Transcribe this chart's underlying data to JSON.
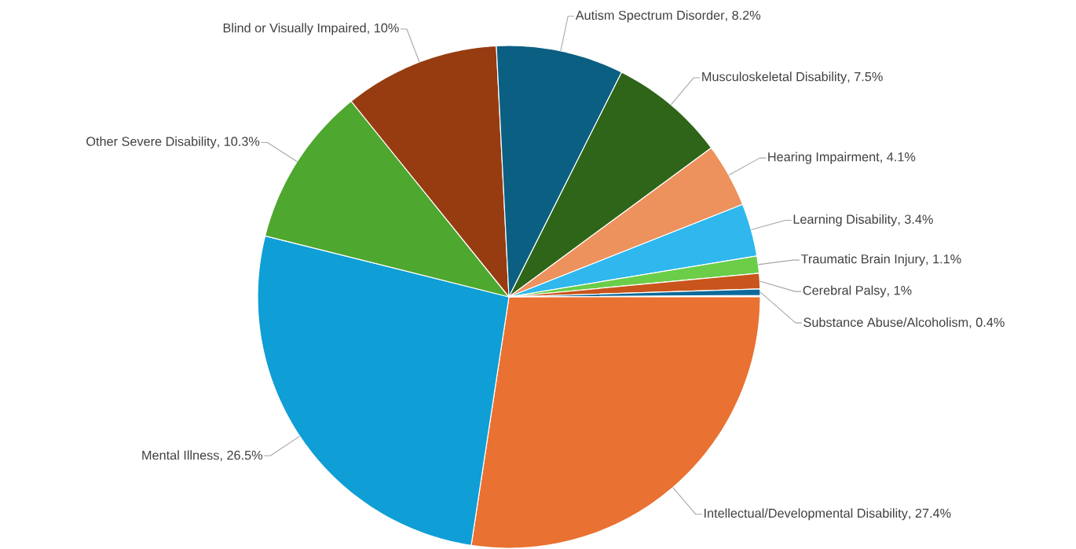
{
  "chart_data": {
    "type": "pie",
    "categories": [
      "Intellectual/Developmental Disability",
      "Mental Illness",
      "Other Severe Disability",
      "Blind or Visually Impaired",
      "Autism Spectrum Disorder",
      "Musculoskeletal Disability",
      "Hearing Impairment",
      "Learning Disability",
      "Traumatic Brain Injury",
      "Cerebral Palsy",
      "Substance Abuse/Alcoholism"
    ],
    "values": [
      27.4,
      26.5,
      10.3,
      10,
      8.2,
      7.5,
      4.1,
      3.4,
      1.1,
      1,
      0.4
    ],
    "colors": [
      "#e97132",
      "#0f9ed5",
      "#4ea72e",
      "#963c10",
      "#0b5f82",
      "#2e6519",
      "#ed915d",
      "#2fb7ee",
      "#6bcd48",
      "#c9551c",
      "#0e6a9a"
    ],
    "data_labels": true,
    "value_labels": [
      ", 27.4%",
      ", 26.5%",
      ", 10.3%",
      ", 10%",
      ", 8.2%",
      ", 7.5%",
      ", 4.1%",
      ", 3.4%",
      ", 1.1%",
      ", 1%",
      ", 0.4%"
    ]
  }
}
